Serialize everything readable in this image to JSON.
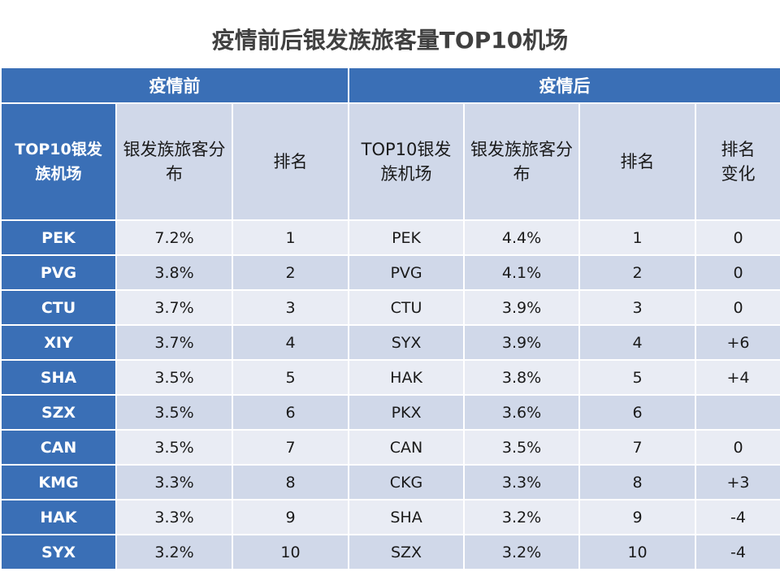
{
  "title": "疫情前后银发族旅客量TOP10机场",
  "groups": {
    "before": "疫情前",
    "after": "疫情后"
  },
  "headers": {
    "before_airport": "TOP10银发族机场",
    "before_share": "银发族旅客分布",
    "before_rank": "排名",
    "after_airport": "TOP10银发族机场",
    "after_share": "银发族旅客分布",
    "after_rank": "排名",
    "rank_change": "排名变化"
  },
  "rows": [
    {
      "b_airport": "PEK",
      "b_share": "7.2%",
      "b_rank": "1",
      "a_airport": "PEK",
      "a_share": "4.4%",
      "a_rank": "1",
      "change": "0"
    },
    {
      "b_airport": "PVG",
      "b_share": "3.8%",
      "b_rank": "2",
      "a_airport": "PVG",
      "a_share": "4.1%",
      "a_rank": "2",
      "change": "0"
    },
    {
      "b_airport": "CTU",
      "b_share": "3.7%",
      "b_rank": "3",
      "a_airport": "CTU",
      "a_share": "3.9%",
      "a_rank": "3",
      "change": "0"
    },
    {
      "b_airport": "XIY",
      "b_share": "3.7%",
      "b_rank": "4",
      "a_airport": "SYX",
      "a_share": "3.9%",
      "a_rank": "4",
      "change": "+6"
    },
    {
      "b_airport": "SHA",
      "b_share": "3.5%",
      "b_rank": "5",
      "a_airport": "HAK",
      "a_share": "3.8%",
      "a_rank": "5",
      "change": "+4"
    },
    {
      "b_airport": "SZX",
      "b_share": "3.5%",
      "b_rank": "6",
      "a_airport": "PKX",
      "a_share": "3.6%",
      "a_rank": "6",
      "change": ""
    },
    {
      "b_airport": "CAN",
      "b_share": "3.5%",
      "b_rank": "7",
      "a_airport": "CAN",
      "a_share": "3.5%",
      "a_rank": "7",
      "change": "0"
    },
    {
      "b_airport": "KMG",
      "b_share": "3.3%",
      "b_rank": "8",
      "a_airport": "CKG",
      "a_share": "3.3%",
      "a_rank": "8",
      "change": "+3"
    },
    {
      "b_airport": "HAK",
      "b_share": "3.3%",
      "b_rank": "9",
      "a_airport": "SHA",
      "a_share": "3.2%",
      "a_rank": "9",
      "change": "-4"
    },
    {
      "b_airport": "SYX",
      "b_share": "3.2%",
      "b_rank": "10",
      "a_airport": "SZX",
      "a_share": "3.2%",
      "a_rank": "10",
      "change": "-4"
    }
  ],
  "colors": {
    "header_blue": "#3a6fb6",
    "band_dark": "#d0d8e9",
    "band_light": "#e9ecf4",
    "title": "#404040"
  }
}
